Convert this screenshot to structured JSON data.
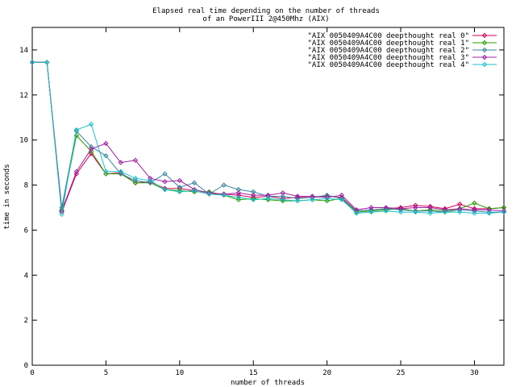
{
  "chart_data": {
    "type": "line",
    "title": "Elapsed real time depending on the number of threads",
    "subtitle": "of an PowerIII 2@450Mhz (AIX)",
    "xlabel": "number of threads",
    "ylabel": "time in seconds",
    "xlim": [
      0,
      32
    ],
    "ylim": [
      0,
      15
    ],
    "x_ticks": [
      0,
      5,
      10,
      15,
      20,
      25,
      30
    ],
    "y_ticks": [
      0,
      2,
      4,
      6,
      8,
      10,
      12,
      14
    ],
    "grid": false,
    "legend_position": "top-right",
    "x": [
      0,
      1,
      2,
      3,
      4,
      5,
      6,
      7,
      8,
      9,
      10,
      11,
      12,
      13,
      14,
      15,
      16,
      17,
      18,
      19,
      20,
      21,
      22,
      23,
      24,
      25,
      26,
      27,
      28,
      29,
      30,
      31,
      32
    ],
    "series": [
      {
        "name": "\"AIX 0050409A4C00 deepthought real 0\"",
        "color": "#d2005a",
        "values": [
          13.45,
          13.45,
          6.8,
          8.5,
          9.4,
          8.5,
          8.55,
          8.1,
          8.15,
          7.85,
          7.85,
          7.75,
          7.6,
          7.6,
          7.55,
          7.45,
          7.5,
          7.4,
          7.45,
          7.45,
          7.5,
          7.45,
          6.85,
          6.9,
          6.95,
          7.0,
          7.1,
          7.05,
          6.95,
          7.15,
          6.95,
          6.95,
          7.0
        ]
      },
      {
        "name": "\"AIX 0050409A4C00 deepthought real 1\"",
        "color": "#2a9d00",
        "values": [
          13.45,
          13.45,
          6.9,
          10.2,
          9.5,
          8.5,
          8.5,
          8.1,
          8.1,
          7.8,
          7.75,
          7.7,
          7.7,
          7.55,
          7.35,
          7.4,
          7.35,
          7.3,
          7.3,
          7.35,
          7.3,
          7.4,
          6.8,
          6.85,
          6.9,
          6.95,
          6.85,
          6.9,
          6.85,
          6.95,
          7.2,
          6.95,
          7.0
        ]
      },
      {
        "name": "\"AIX 0050409A4C00 deepthought real 2\"",
        "color": "#3a85a0",
        "values": [
          13.45,
          13.45,
          7.0,
          10.4,
          9.7,
          9.3,
          8.5,
          8.2,
          8.1,
          8.5,
          7.9,
          8.1,
          7.6,
          8.0,
          7.8,
          7.7,
          7.5,
          7.5,
          7.4,
          7.45,
          7.55,
          7.4,
          6.85,
          6.9,
          6.95,
          6.9,
          6.85,
          6.85,
          6.8,
          6.9,
          6.85,
          6.8,
          6.8
        ]
      },
      {
        "name": "\"AIX 0050409A4C00 deepthought real 3\"",
        "color": "#a020a0",
        "values": [
          13.45,
          13.45,
          6.85,
          8.6,
          9.6,
          9.85,
          9.0,
          9.1,
          8.3,
          8.15,
          8.2,
          7.8,
          7.65,
          7.6,
          7.65,
          7.55,
          7.55,
          7.65,
          7.5,
          7.5,
          7.45,
          7.55,
          6.9,
          7.0,
          7.0,
          6.95,
          7.0,
          7.0,
          6.9,
          6.95,
          6.9,
          6.9,
          6.85
        ]
      },
      {
        "name": "\"AIX 0050409A4C00 deepthought real 4\"",
        "color": "#20c0c8",
        "values": [
          13.45,
          13.45,
          6.7,
          10.45,
          10.7,
          8.6,
          8.6,
          8.3,
          8.2,
          7.8,
          7.7,
          7.75,
          7.6,
          7.55,
          7.45,
          7.35,
          7.4,
          7.35,
          7.3,
          7.35,
          7.4,
          7.35,
          6.75,
          6.8,
          6.85,
          6.8,
          6.8,
          6.75,
          6.8,
          6.8,
          6.75,
          6.75,
          6.8
        ]
      }
    ]
  }
}
